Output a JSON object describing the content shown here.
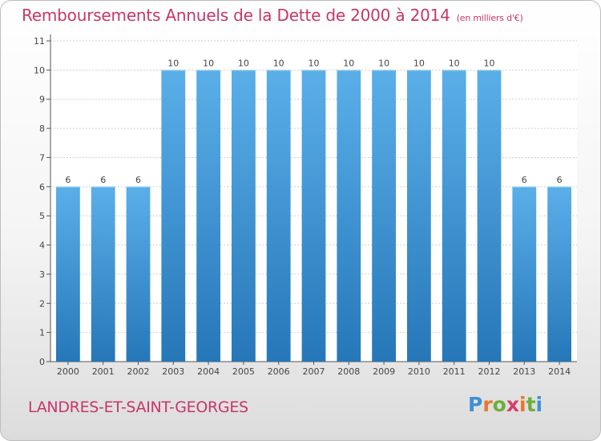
{
  "header": {
    "title": "Remboursements Annuels de la Dette de 2000 à 2014",
    "unit": "(en milliers d'€)"
  },
  "footer": {
    "location": "LANDRES-ET-SAINT-GEORGES",
    "logo": "Proxiti"
  },
  "colors": {
    "title": "#c7366a",
    "bar_top": "#5aafe9",
    "bar_bottom": "#2677b8",
    "grid": "#d0d0d0"
  },
  "chart_data": {
    "type": "bar",
    "title": "Remboursements Annuels de la Dette de 2000 à 2014",
    "xlabel": "",
    "ylabel": "",
    "categories": [
      "2000",
      "2001",
      "2002",
      "2003",
      "2004",
      "2005",
      "2006",
      "2007",
      "2008",
      "2009",
      "2010",
      "2011",
      "2012",
      "2013",
      "2014"
    ],
    "values": [
      6,
      6,
      6,
      10,
      10,
      10,
      10,
      10,
      10,
      10,
      10,
      10,
      10,
      6,
      6
    ],
    "data_labels": [
      "6",
      "6",
      "6",
      "10",
      "10",
      "10",
      "10",
      "10",
      "10",
      "10",
      "10",
      "10",
      "10",
      "6",
      "6"
    ],
    "yticks": [
      0,
      1,
      2,
      3,
      4,
      5,
      6,
      7,
      8,
      9,
      10,
      11
    ],
    "ylim": [
      0,
      11
    ],
    "grid": true
  }
}
